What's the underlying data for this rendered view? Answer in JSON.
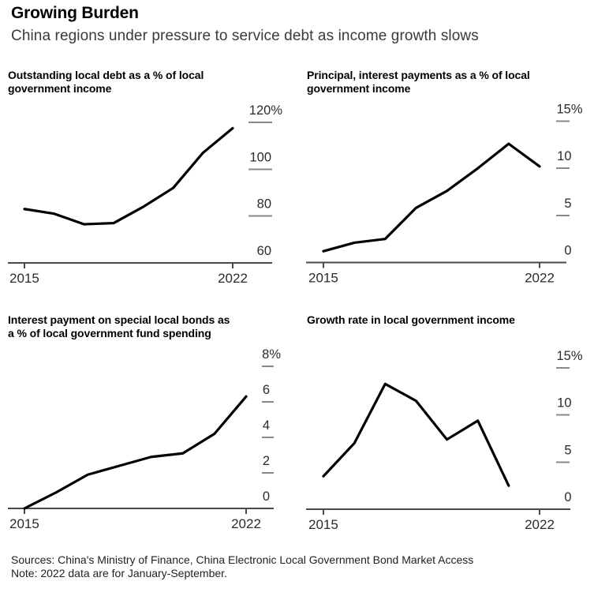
{
  "header": {
    "title": "Growing Burden",
    "subtitle": "China regions under pressure to service debt as income growth slows"
  },
  "footer": {
    "sources": "Sources: China's Ministry of Finance, China Electronic Local Government Bond Market Access",
    "note": "Note: 2022 data are for January-September."
  },
  "colors": {
    "background": "#ffffff",
    "line": "#000000",
    "axis": "#4a4a4a",
    "tick_dash": "#8a8a8a",
    "tick_label": "#2b2b2b",
    "title": "#000000",
    "subtitle": "#3a3a3a",
    "footer_text": "#222222"
  },
  "chart_data": [
    {
      "type": "line",
      "title": "Outstanding local debt as a % of local\ngovernment income",
      "x": [
        2015,
        2016,
        2017,
        2018,
        2019,
        2020,
        2021,
        2022
      ],
      "values": [
        83,
        81,
        76.5,
        77,
        84,
        92,
        107,
        117.5
      ],
      "xlim": [
        2015,
        2022
      ],
      "ylim": [
        60,
        120
      ],
      "yticks": [
        120,
        100,
        80,
        60
      ],
      "ytick_labels": [
        "120%",
        "100",
        "80",
        "60"
      ],
      "xticks": [
        2015,
        2022
      ],
      "xtick_labels": [
        "2015",
        "2022"
      ],
      "grid": "off",
      "legend": "none"
    },
    {
      "type": "line",
      "title": "Principal, interest payments as a % of local\ngovernment income",
      "x": [
        2015,
        2016,
        2017,
        2018,
        2019,
        2020,
        2021,
        2022
      ],
      "values": [
        1.2,
        2.1,
        2.5,
        5.8,
        7.6,
        10,
        12.6,
        10.2
      ],
      "xlim": [
        2015,
        2022
      ],
      "ylim": [
        0,
        15
      ],
      "yticks": [
        15,
        10,
        5,
        0
      ],
      "ytick_labels": [
        "15%",
        "10",
        "5",
        "0"
      ],
      "xticks": [
        2015,
        2022
      ],
      "xtick_labels": [
        "2015",
        "2022"
      ],
      "grid": "off",
      "legend": "none"
    },
    {
      "type": "line",
      "title": "Interest payment on special local bonds as\na % of local government fund spending",
      "x": [
        2015,
        2016,
        2017,
        2018,
        2019,
        2020,
        2021,
        2022
      ],
      "values": [
        0,
        0.9,
        1.9,
        2.4,
        2.9,
        3.1,
        4.2,
        6.3
      ],
      "xlim": [
        2015,
        2022
      ],
      "ylim": [
        0,
        8
      ],
      "yticks": [
        8,
        6,
        4,
        2,
        0
      ],
      "ytick_labels": [
        "8%",
        "6",
        "4",
        "2",
        "0"
      ],
      "xticks": [
        2015,
        2022
      ],
      "xtick_labels": [
        "2015",
        "2022"
      ],
      "grid": "off",
      "legend": "none"
    },
    {
      "type": "line",
      "title": "Growth rate in local government income",
      "x": [
        2015,
        2016,
        2017,
        2018,
        2019,
        2020,
        2021
      ],
      "values": [
        3.5,
        7,
        13.3,
        11.5,
        7.4,
        9.4,
        2.5
      ],
      "xlim": [
        2015,
        2022
      ],
      "ylim": [
        0,
        15
      ],
      "yticks": [
        15,
        10,
        5,
        0
      ],
      "ytick_labels": [
        "15%",
        "10",
        "5",
        "0"
      ],
      "xticks": [
        2015,
        2022
      ],
      "xtick_labels": [
        "2015",
        "2022"
      ],
      "grid": "off",
      "legend": "none"
    }
  ]
}
